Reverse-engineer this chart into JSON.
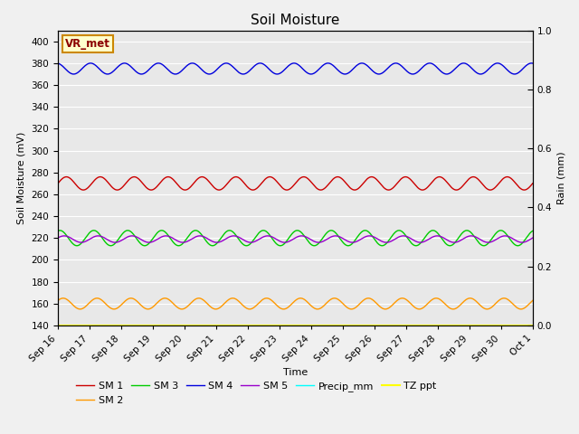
{
  "title": "Soil Moisture",
  "xlabel": "Time",
  "ylabel_left": "Soil Moisture (mV)",
  "ylabel_right": "Rain (mm)",
  "ylim_left": [
    140,
    410
  ],
  "ylim_right": [
    0.0,
    1.0
  ],
  "yticks_left": [
    140,
    160,
    180,
    200,
    220,
    240,
    260,
    280,
    300,
    320,
    340,
    360,
    380,
    400
  ],
  "yticks_right": [
    0.0,
    0.2,
    0.4,
    0.6,
    0.8,
    1.0
  ],
  "n_points": 1500,
  "series": [
    {
      "name": "SM 1",
      "color": "#cc0000",
      "base": 270,
      "amp": 6,
      "freq": 14,
      "phase": 0.0,
      "lw": 1.0
    },
    {
      "name": "SM 2",
      "color": "#ff9900",
      "base": 160,
      "amp": 5,
      "freq": 14,
      "phase": 0.6,
      "lw": 1.0
    },
    {
      "name": "SM 3",
      "color": "#00cc00",
      "base": 220,
      "amp": 7,
      "freq": 14,
      "phase": 1.2,
      "lw": 1.0
    },
    {
      "name": "SM 4",
      "color": "#0000dd",
      "base": 375,
      "amp": 5,
      "freq": 14,
      "phase": 1.8,
      "lw": 1.0
    },
    {
      "name": "SM 5",
      "color": "#9900cc",
      "base": 219,
      "amp": 3,
      "freq": 14,
      "phase": 0.4,
      "lw": 1.0
    },
    {
      "name": "Precip_mm",
      "color": "#00ffff",
      "base": 0,
      "amp": 0,
      "freq": 0,
      "phase": 0.0,
      "lw": 1.0
    },
    {
      "name": "TZ ppt",
      "color": "#ffff00",
      "base": 140,
      "amp": 0,
      "freq": 0,
      "phase": 0.0,
      "lw": 1.5
    }
  ],
  "xtick_labels": [
    "Sep 16",
    "Sep 17",
    "Sep 18",
    "Sep 19",
    "Sep 20",
    "Sep 21",
    "Sep 22",
    "Sep 23",
    "Sep 24",
    "Sep 25",
    "Sep 26",
    "Sep 27",
    "Sep 28",
    "Sep 29",
    "Sep 30",
    "Oct 1"
  ],
  "annotation_text": "VR_met",
  "annotation_box_facecolor": "#ffffcc",
  "annotation_box_edgecolor": "#cc8800",
  "annotation_text_color": "#8b0000",
  "plot_bg_color": "#e8e8e8",
  "fig_bg_color": "#f0f0f0",
  "grid_color": "#ffffff",
  "title_fontsize": 11,
  "axis_fontsize": 8,
  "tick_fontsize": 7.5,
  "legend_fontsize": 8
}
